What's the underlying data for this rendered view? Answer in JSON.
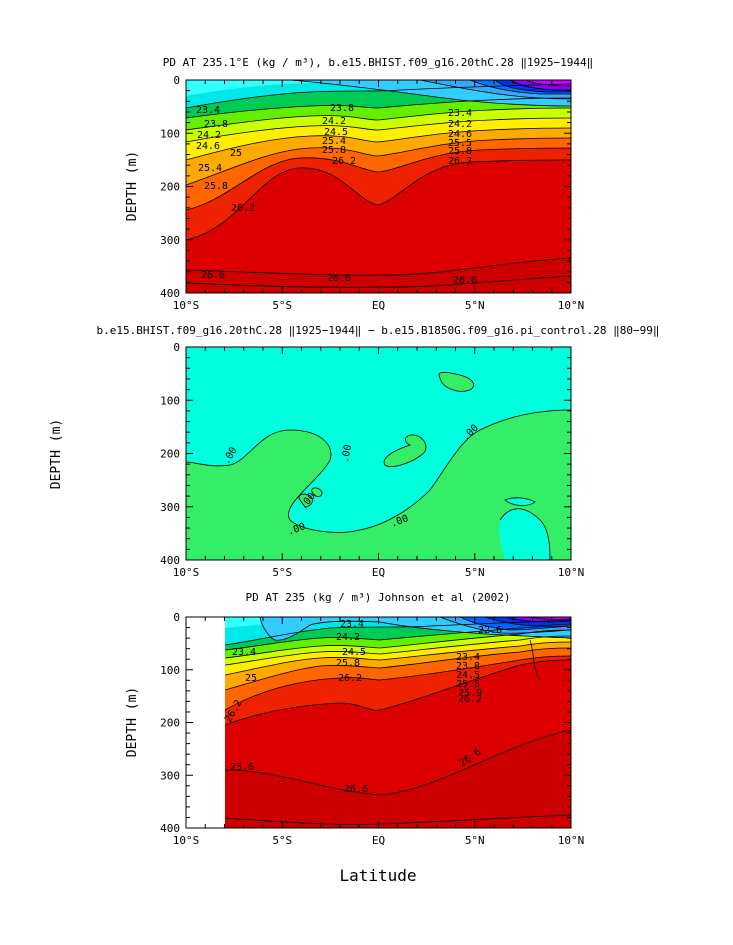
{
  "chart_data": [
    {
      "type": "contour",
      "title": "PD AT 235.1°E (kg / m³), b.e15.BHIST.f09_g16.20thC.28 ‖1925−1944‖",
      "ylabel": "DEPTH (m)",
      "xlabel": "",
      "xlim": [
        -10,
        10
      ],
      "ylim": [
        400,
        0
      ],
      "xticks": [
        "10°S",
        "5°S",
        "EQ",
        "5°N",
        "10°N"
      ],
      "yticks": [
        "0",
        "100",
        "200",
        "300",
        "400"
      ],
      "contour_labels": [
        "23.4",
        "23.8",
        "24.2",
        "24.6",
        "25",
        "25.4",
        "25.8",
        "26.2",
        "26.6",
        "23.8",
        "24.2",
        "24.5",
        "25.4",
        "25.8",
        "26.2",
        "26.6",
        "23.4",
        "24.2",
        "24.6",
        "25.5",
        "25.8",
        "26.2",
        "26.6"
      ]
    },
    {
      "type": "contour",
      "title": "b.e15.BHIST.f09_g16.20thC.28 ‖1925−1944‖ − b.e15.B1850G.f09_g16.pi_control.28 ‖80−99‖",
      "ylabel": "DEPTH (m)",
      "xlabel": "",
      "xlim": [
        -10,
        10
      ],
      "ylim": [
        400,
        0
      ],
      "xticks": [
        "10°S",
        "5°S",
        "EQ",
        "5°N",
        "10°N"
      ],
      "yticks": [
        "0",
        "100",
        "200",
        "300",
        "400"
      ],
      "contour_labels": [
        ".00",
        ".00",
        ".00",
        ".00",
        ".00",
        ".00"
      ]
    },
    {
      "type": "contour",
      "title": "PD AT 235 (kg / m³) Johnson et al (2002)",
      "ylabel": "DEPTH (m)",
      "xlabel": "Latitude",
      "xlim": [
        -10,
        10
      ],
      "ylim": [
        400,
        0
      ],
      "xticks": [
        "10°S",
        "5°S",
        "EQ",
        "5°N",
        "10°N"
      ],
      "yticks": [
        "0",
        "100",
        "200",
        "300",
        "400"
      ],
      "contour_labels": [
        "23.4",
        "23.4",
        "24.2",
        "24.5",
        "25.8",
        "26.2",
        "25",
        "26.2",
        "25.6",
        "26.6",
        "26.6",
        "22.6",
        "23.4",
        "23.8",
        "24.5",
        "25.5",
        "25.9",
        "26.2"
      ]
    }
  ],
  "colors": {
    "c1": "#33ffff",
    "c2": "#00e8e8",
    "c3": "#00cc55",
    "c4": "#66ee00",
    "c5": "#ccff00",
    "c6": "#ffee00",
    "c7": "#ffaa00",
    "c8": "#ff6600",
    "c9": "#ee2200",
    "c10": "#dd0000",
    "c11": "#cc0000",
    "blue1": "#33aaff",
    "blue2": "#0055ff",
    "blue3": "#0000ee",
    "purple": "#8800ff",
    "magenta": "#cc00ff",
    "diff_neg": "#00ffdd",
    "diff_pos": "#33ee66"
  }
}
